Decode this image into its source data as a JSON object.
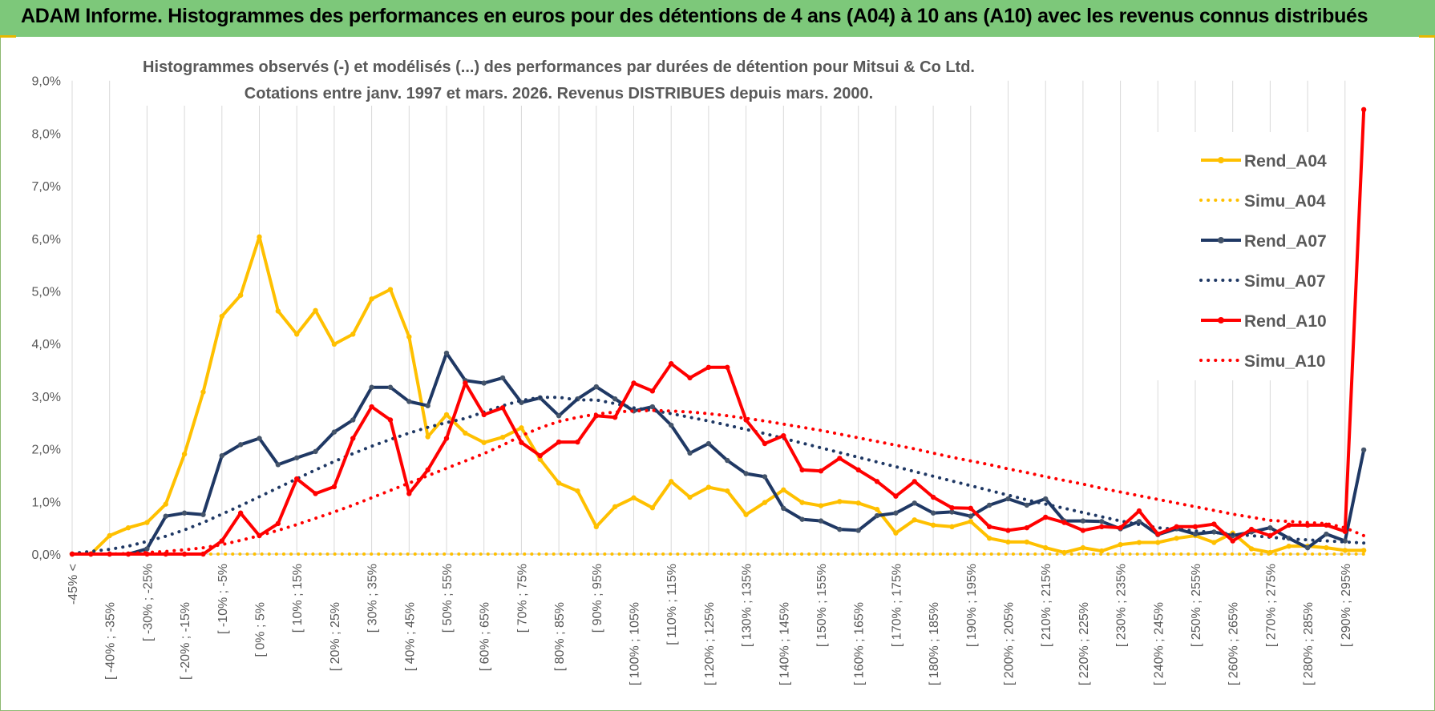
{
  "banner": {
    "title": "ADAM Informe. Histogrammes des performances en euros pour des détentions de 4 ans (A04) à 10 ans (A10) avec les revenus connus distribués"
  },
  "colors": {
    "banner_bg": "#7dc87a",
    "A04": "#ffc000",
    "A07": "#1f3864",
    "A10": "#ff0000"
  },
  "chart_data": {
    "type": "line",
    "title_line1": "Histogrammes observés (-) et modélisés (...) des performances par durées de détention pour Mitsui & Co Ltd.",
    "title_line2": "Cotations entre janv. 1997 et mars. 2026. Revenus DISTRIBUES depuis mars. 2000.",
    "ylim": [
      0,
      9
    ],
    "yticks": [
      "0,0%",
      "1,0%",
      "2,0%",
      "3,0%",
      "4,0%",
      "5,0%",
      "6,0%",
      "7,0%",
      "8,0%",
      "9,0%"
    ],
    "grid": "vertical",
    "legend_position": "right",
    "xtick_labels": [
      "-45% <",
      "[ -40% ; -35%",
      "[ -30% ; -25%",
      "[ -20% ; -15%",
      "[ -10% ; -5%",
      "[ 0% ; 5%",
      "[ 10% ; 15%",
      "[ 20% ; 25%",
      "[ 30% ; 35%",
      "[ 40% ; 45%",
      "[ 50% ; 55%",
      "[ 60% ; 65%",
      "[ 70% ; 75%",
      "[ 80% ; 85%",
      "[ 90% ; 95%",
      "[ 100% ; 105%",
      "[ 110% ; 115%",
      "[ 120% ; 125%",
      "[ 130% ; 135%",
      "[ 140% ; 145%",
      "[ 150% ; 155%",
      "[ 160% ; 165%",
      "[ 170% ; 175%",
      "[ 180% ; 185%",
      "[ 190% ; 195%",
      "[ 200% ; 205%",
      "[ 210% ; 215%",
      "[ 220% ; 225%",
      "[ 230% ; 235%",
      "[ 240% ; 245%",
      "[ 250% ; 255%",
      "[ 260% ; 265%",
      "[ 270% ; 275%",
      "[ 280% ; 285%",
      "[ 290% ; 295%"
    ],
    "series": [
      {
        "name": "Rend_A04",
        "style": "solid",
        "color": "#ffc000",
        "values": [
          0,
          0,
          0.35,
          0.5,
          0.6,
          0.95,
          1.9,
          3.08,
          4.52,
          4.92,
          6.03,
          4.62,
          4.18,
          4.63,
          3.99,
          4.18,
          4.85,
          5.03,
          4.13,
          2.23,
          2.65,
          2.3,
          2.12,
          2.22,
          2.4,
          1.8,
          1.35,
          1.2,
          0.52,
          0.9,
          1.07,
          0.88,
          1.38,
          1.08,
          1.27,
          1.2,
          0.75,
          0.98,
          1.22,
          0.98,
          0.92,
          1.0,
          0.97,
          0.85,
          0.4,
          0.65,
          0.55,
          0.52,
          0.62,
          0.3,
          0.23,
          0.23,
          0.12,
          0.03,
          0.12,
          0.06,
          0.18,
          0.22,
          0.22,
          0.3,
          0.35,
          0.22,
          0.4,
          0.1,
          0.03,
          0.15,
          0.15,
          0.12,
          0.07,
          0.07
        ]
      },
      {
        "name": "Simu_A04",
        "style": "dotted",
        "color": "#ffc000",
        "values": [
          0,
          0,
          0,
          0,
          0,
          0,
          0,
          0,
          0,
          0,
          0,
          0,
          0,
          0,
          0,
          0,
          0,
          0,
          0,
          0,
          0,
          0,
          0,
          0,
          0,
          0,
          0,
          0,
          0,
          0,
          0,
          0,
          0,
          0,
          0,
          0,
          0,
          0,
          0,
          0,
          0,
          0,
          0,
          0,
          0,
          0,
          0,
          0,
          0,
          0,
          0,
          0,
          0,
          0,
          0,
          0,
          0,
          0,
          0,
          0,
          0,
          0,
          0,
          0,
          0,
          0,
          0,
          0,
          0,
          0
        ]
      },
      {
        "name": "Rend_A07",
        "style": "solid",
        "color": "#1f3864",
        "values": [
          0,
          0,
          0,
          0,
          0.1,
          0.72,
          0.78,
          0.75,
          1.87,
          2.08,
          2.2,
          1.7,
          1.83,
          1.95,
          2.32,
          2.55,
          3.17,
          3.17,
          2.9,
          2.82,
          3.82,
          3.3,
          3.25,
          3.35,
          2.88,
          2.97,
          2.63,
          2.95,
          3.18,
          2.95,
          2.72,
          2.8,
          2.45,
          1.92,
          2.1,
          1.78,
          1.53,
          1.47,
          0.87,
          0.66,
          0.63,
          0.47,
          0.45,
          0.73,
          0.78,
          0.97,
          0.78,
          0.8,
          0.72,
          0.93,
          1.05,
          0.93,
          1.05,
          0.63,
          0.63,
          0.62,
          0.48,
          0.62,
          0.37,
          0.48,
          0.38,
          0.42,
          0.35,
          0.42,
          0.5,
          0.3,
          0.12,
          0.38,
          0.25,
          1.98
        ]
      },
      {
        "name": "Simu_A07",
        "style": "dotted",
        "color": "#1f3864",
        "values": [
          0.01,
          0.05,
          0.09,
          0.15,
          0.24,
          0.34,
          0.46,
          0.6,
          0.76,
          0.92,
          1.09,
          1.26,
          1.43,
          1.6,
          1.76,
          1.91,
          2.05,
          2.18,
          2.3,
          2.41,
          2.5,
          2.58,
          2.7,
          2.82,
          2.92,
          2.98,
          2.98,
          2.93,
          2.93,
          2.86,
          2.78,
          2.73,
          2.67,
          2.6,
          2.53,
          2.45,
          2.37,
          2.29,
          2.2,
          2.11,
          2.02,
          1.93,
          1.84,
          1.75,
          1.66,
          1.57,
          1.48,
          1.39,
          1.3,
          1.21,
          1.12,
          1.03,
          0.95,
          0.87,
          0.79,
          0.71,
          0.63,
          0.56,
          0.5,
          0.47,
          0.44,
          0.41,
          0.38,
          0.35,
          0.32,
          0.29,
          0.27,
          0.25,
          0.23,
          0.21
        ]
      },
      {
        "name": "Rend_A10",
        "style": "solid",
        "color": "#ff0000",
        "values": [
          0,
          0,
          0,
          0,
          0,
          0,
          0,
          0,
          0.25,
          0.78,
          0.35,
          0.58,
          1.43,
          1.15,
          1.28,
          2.2,
          2.8,
          2.55,
          1.15,
          1.6,
          2.2,
          3.25,
          2.65,
          2.78,
          2.12,
          1.87,
          2.13,
          2.13,
          2.63,
          2.6,
          3.25,
          3.1,
          3.62,
          3.35,
          3.55,
          3.55,
          2.55,
          2.1,
          2.25,
          1.6,
          1.58,
          1.82,
          1.6,
          1.38,
          1.1,
          1.38,
          1.08,
          0.88,
          0.87,
          0.52,
          0.45,
          0.5,
          0.7,
          0.6,
          0.45,
          0.52,
          0.5,
          0.82,
          0.38,
          0.52,
          0.52,
          0.57,
          0.25,
          0.47,
          0.35,
          0.55,
          0.55,
          0.55,
          0.43,
          8.45
        ]
      },
      {
        "name": "Simu_A10",
        "style": "dotted",
        "color": "#ff0000",
        "values": [
          0,
          0,
          0,
          0.01,
          0.03,
          0.05,
          0.08,
          0.12,
          0.18,
          0.26,
          0.35,
          0.45,
          0.56,
          0.68,
          0.8,
          0.93,
          1.07,
          1.21,
          1.35,
          1.49,
          1.63,
          1.77,
          1.91,
          2.07,
          2.25,
          2.4,
          2.52,
          2.6,
          2.66,
          2.7,
          2.72,
          2.73,
          2.72,
          2.7,
          2.67,
          2.63,
          2.58,
          2.53,
          2.47,
          2.41,
          2.35,
          2.28,
          2.21,
          2.14,
          2.07,
          2.0,
          1.92,
          1.84,
          1.77,
          1.7,
          1.62,
          1.55,
          1.47,
          1.4,
          1.33,
          1.25,
          1.18,
          1.11,
          1.04,
          0.97,
          0.9,
          0.83,
          0.76,
          0.7,
          0.64,
          0.62,
          0.6,
          0.58,
          0.5,
          0.35
        ]
      }
    ]
  }
}
